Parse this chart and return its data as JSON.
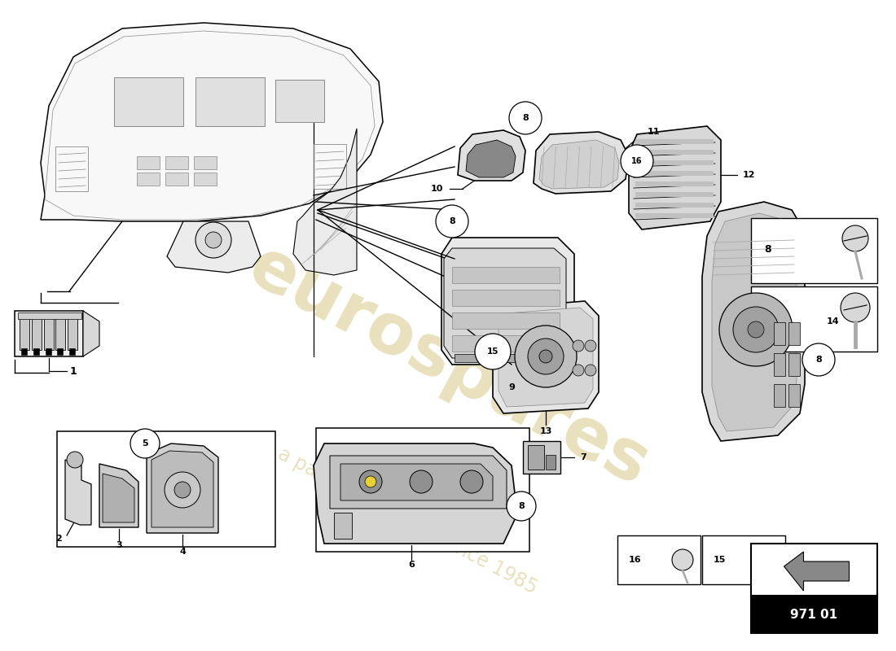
{
  "bg_color": "#ffffff",
  "wm1": "eurospares",
  "wm2": "a passion for parts since 1985",
  "wm_color": "#c8b45a",
  "wm_alpha": 0.4,
  "part_number": "971 01",
  "fig_w": 11.0,
  "fig_h": 8.0,
  "lw_thin": 0.7,
  "lw_med": 1.0,
  "lw_thick": 1.4
}
